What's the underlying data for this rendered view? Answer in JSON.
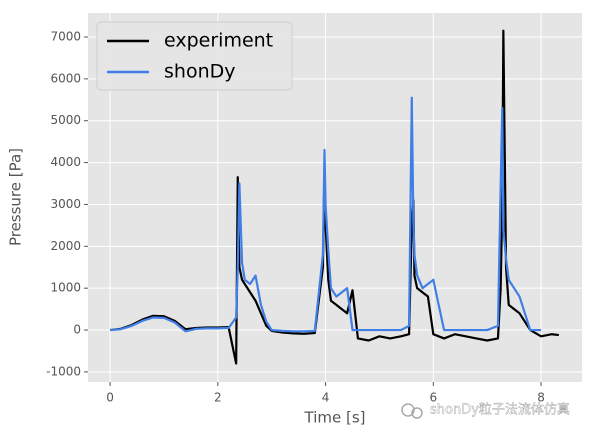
{
  "chart_data": {
    "type": "line",
    "x_label": "Time [s]",
    "y_label": "Pressure [Pa]",
    "watermark": "shonDy粒子法流体仿真",
    "x": [
      0,
      0.2,
      0.4,
      0.6,
      0.8,
      1.0,
      1.2,
      1.4,
      1.6,
      1.8,
      2.0,
      2.2,
      2.34,
      2.37,
      2.4,
      2.45,
      2.5,
      2.6,
      2.7,
      2.8,
      2.9,
      3.0,
      3.2,
      3.4,
      3.6,
      3.8,
      3.95,
      3.98,
      4.0,
      4.05,
      4.1,
      4.2,
      4.3,
      4.4,
      4.5,
      4.6,
      4.8,
      5.0,
      5.2,
      5.4,
      5.55,
      5.6,
      5.63,
      5.65,
      5.7,
      5.8,
      5.9,
      6.0,
      6.1,
      6.2,
      6.4,
      6.6,
      6.8,
      7.0,
      7.2,
      7.25,
      7.28,
      7.3,
      7.35,
      7.4,
      7.5,
      7.6,
      7.7,
      7.8,
      8.0,
      8.2,
      8.33
    ],
    "series": [
      {
        "name": "experiment",
        "color": "#000000",
        "values": [
          0,
          30,
          120,
          250,
          340,
          330,
          220,
          20,
          50,
          60,
          60,
          70,
          -800,
          3650,
          1500,
          1200,
          1100,
          900,
          700,
          400,
          100,
          -20,
          -60,
          -80,
          -90,
          -70,
          1500,
          3800,
          2500,
          1200,
          700,
          600,
          500,
          400,
          950,
          -200,
          -250,
          -150,
          -200,
          -150,
          -100,
          2500,
          3100,
          1300,
          1000,
          900,
          800,
          -100,
          -150,
          -200,
          -100,
          -150,
          -200,
          -250,
          -200,
          1000,
          3000,
          7150,
          1500,
          600,
          500,
          400,
          200,
          0,
          -150,
          -100,
          -120
        ]
      },
      {
        "name": "shonDy",
        "color": "#3f7fe6",
        "values": [
          0,
          20,
          100,
          220,
          300,
          290,
          180,
          -30,
          30,
          40,
          40,
          50,
          300,
          1500,
          3500,
          1600,
          1200,
          1100,
          1300,
          600,
          200,
          0,
          -20,
          -30,
          -30,
          -20,
          1800,
          4300,
          3000,
          1900,
          1000,
          800,
          900,
          1000,
          0,
          0,
          0,
          0,
          0,
          0,
          100,
          5550,
          2600,
          1800,
          1300,
          1000,
          1100,
          1200,
          600,
          0,
          0,
          0,
          0,
          0,
          100,
          3400,
          5300,
          2400,
          1700,
          1200,
          1000,
          800,
          400,
          0,
          0,
          null,
          null
        ]
      }
    ],
    "xlim": [
      -0.41,
      8.76
    ],
    "ylim": [
      -1241,
      7573
    ],
    "xticks": [
      0,
      2,
      4,
      6,
      8
    ],
    "yticks": [
      -1000,
      0,
      1000,
      2000,
      3000,
      4000,
      5000,
      6000,
      7000
    ],
    "grid": true,
    "legend": "upper left"
  }
}
